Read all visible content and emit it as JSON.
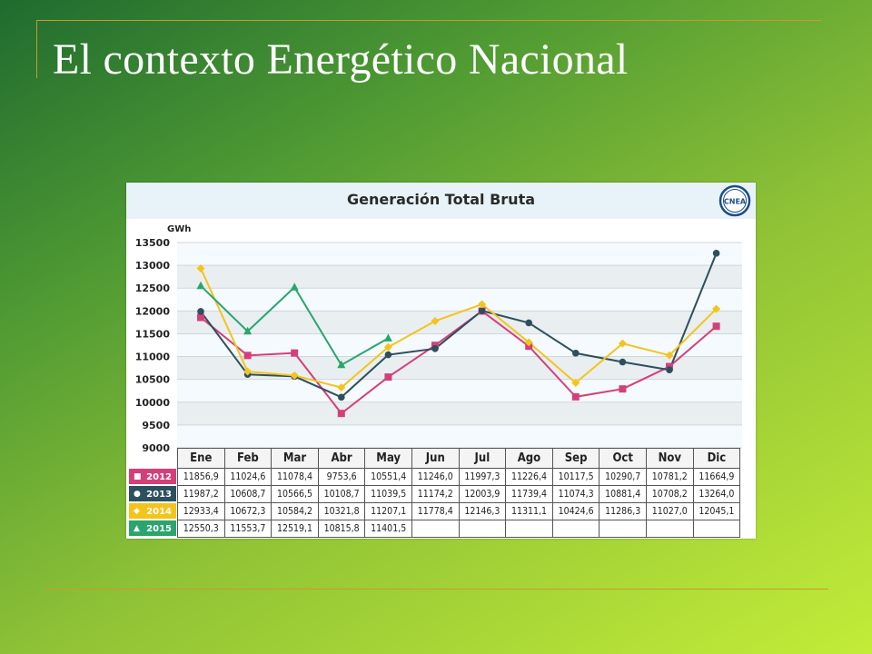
{
  "slide": {
    "title": "El contexto Energético Nacional"
  },
  "logo": {
    "text": "CNEA"
  },
  "colors": {
    "y2012": "#d43f7a",
    "y2013": "#2d4f5e",
    "y2014": "#f4c41b",
    "y2015": "#2aa56e"
  },
  "chart_data": {
    "type": "line",
    "title": "Generación Total Bruta",
    "ylabel": "GWh",
    "xlabel": "",
    "ylim": [
      9000,
      13500
    ],
    "yticks": [
      13500,
      13000,
      12500,
      12000,
      11500,
      11000,
      10500,
      10000,
      9500,
      9000
    ],
    "grid": true,
    "categories": [
      "Ene",
      "Feb",
      "Mar",
      "Abr",
      "May",
      "Jun",
      "Jul",
      "Ago",
      "Sep",
      "Oct",
      "Nov",
      "Dic"
    ],
    "series": [
      {
        "name": "2012",
        "marker": "square",
        "color": "#d43f7a",
        "values": [
          11856.9,
          11024.6,
          11078.4,
          9753.6,
          10551.4,
          11246.0,
          11997.3,
          11226.4,
          10117.5,
          10290.7,
          10781.2,
          11664.9
        ],
        "labels": [
          "11856,9",
          "11024,6",
          "11078,4",
          "9753,6",
          "10551,4",
          "11246,0",
          "11997,3",
          "11226,4",
          "10117,5",
          "10290,7",
          "10781,2",
          "11664,9"
        ]
      },
      {
        "name": "2013",
        "marker": "circle",
        "color": "#2d4f5e",
        "values": [
          11987.2,
          10608.7,
          10566.5,
          10108.7,
          11039.5,
          11174.2,
          12003.9,
          11739.4,
          11074.3,
          10881.4,
          10708.2,
          13264.0
        ],
        "labels": [
          "11987,2",
          "10608,7",
          "10566,5",
          "10108,7",
          "11039,5",
          "11174,2",
          "12003,9",
          "11739,4",
          "11074,3",
          "10881,4",
          "10708,2",
          "13264,0"
        ]
      },
      {
        "name": "2014",
        "marker": "diamond",
        "color": "#f4c41b",
        "values": [
          12933.4,
          10672.3,
          10584.2,
          10321.8,
          11207.1,
          11778.4,
          12146.3,
          11311.1,
          10424.6,
          11286.3,
          11027.0,
          12045.1
        ],
        "labels": [
          "12933,4",
          "10672,3",
          "10584,2",
          "10321,8",
          "11207,1",
          "11778,4",
          "12146,3",
          "11311,1",
          "10424,6",
          "11286,3",
          "11027,0",
          "12045,1"
        ]
      },
      {
        "name": "2015",
        "marker": "triangle",
        "color": "#2aa56e",
        "values": [
          12550.3,
          11553.7,
          12519.1,
          10815.8,
          11401.5,
          null,
          null,
          null,
          null,
          null,
          null,
          null
        ],
        "labels": [
          "12550,3",
          "11553,7",
          "12519,1",
          "10815,8",
          "11401,5",
          "",
          "",
          "",
          "",
          "",
          "",
          ""
        ]
      }
    ]
  }
}
